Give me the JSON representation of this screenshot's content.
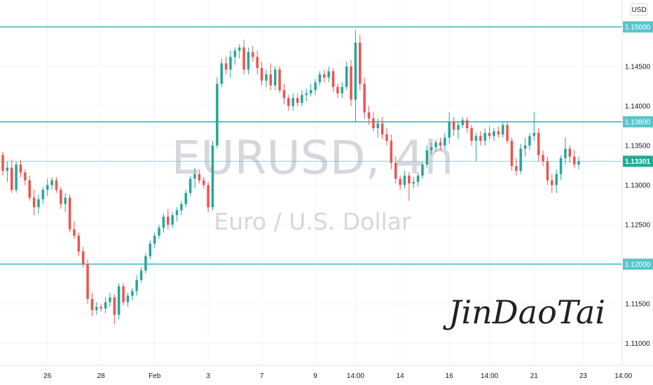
{
  "colors": {
    "bull": "#26a69a",
    "bear": "#ef5350",
    "level_line": "#5bc4cc",
    "level_label_bg": "#5bc4cc",
    "price_label_bg": "#22ab94",
    "grid": "#f0f3fa",
    "axis_border": "#e0e3eb",
    "watermark": "#d5d7dc"
  },
  "chart_data": {
    "type": "candlestick",
    "symbol_watermark": "EURUSD, 4h",
    "description_watermark": "Euro / U.S. Dollar",
    "currency_button": "USD",
    "signature": "JinDaoTai",
    "y_range": [
      1.1072,
      1.1534
    ],
    "x_range": [
      0,
      137
    ],
    "y_ticks": [
      1.115,
      1.12,
      1.125,
      1.13,
      1.135,
      1.14,
      1.145,
      1.15,
      1.11
    ],
    "y_tick_labels": [
      "1.11500",
      "1.12000",
      "1.12500",
      "1.13000",
      "1.13500",
      "1.14000",
      "1.14500",
      "1.15000",
      "1.11000"
    ],
    "x_tick_labels": [
      {
        "label": "26",
        "bar": 10
      },
      {
        "label": "28",
        "bar": 22
      },
      {
        "label": "Feb",
        "bar": 34
      },
      {
        "label": "3",
        "bar": 46
      },
      {
        "label": "7",
        "bar": 58
      },
      {
        "label": "9",
        "bar": 70
      },
      {
        "label": "14:00",
        "bar": 79
      },
      {
        "label": "14",
        "bar": 89
      },
      {
        "label": "16",
        "bar": 100
      },
      {
        "label": "14:00",
        "bar": 109
      },
      {
        "label": "21",
        "bar": 119
      },
      {
        "label": "23",
        "bar": 130
      },
      {
        "label": "14:00",
        "bar": 139
      }
    ],
    "horizontal_levels": [
      {
        "price": 1.15,
        "label": "1.15000"
      },
      {
        "price": 1.138,
        "label": "1.13800"
      },
      {
        "price": 1.12,
        "label": "1.12000"
      }
    ],
    "current_price": {
      "price": 1.13301,
      "label": "1.13301"
    },
    "candles": [
      [
        1.1338,
        1.1342,
        1.1312,
        1.1318
      ],
      [
        1.1318,
        1.133,
        1.1304,
        1.1322
      ],
      [
        1.1322,
        1.1332,
        1.129,
        1.1294
      ],
      [
        1.1294,
        1.133,
        1.129,
        1.1326
      ],
      [
        1.1326,
        1.1332,
        1.131,
        1.1316
      ],
      [
        1.1316,
        1.132,
        1.13,
        1.1306
      ],
      [
        1.1306,
        1.1312,
        1.128,
        1.1284
      ],
      [
        1.1284,
        1.1294,
        1.1262,
        1.1272
      ],
      [
        1.1272,
        1.1288,
        1.1264,
        1.1282
      ],
      [
        1.1282,
        1.1298,
        1.1276,
        1.1294
      ],
      [
        1.1294,
        1.1308,
        1.1286,
        1.13
      ],
      [
        1.13,
        1.131,
        1.1294,
        1.1306
      ],
      [
        1.1306,
        1.131,
        1.129,
        1.1294
      ],
      [
        1.1294,
        1.1298,
        1.127,
        1.1276
      ],
      [
        1.1276,
        1.129,
        1.1266,
        1.1284
      ],
      [
        1.1284,
        1.1288,
        1.124,
        1.1244
      ],
      [
        1.1244,
        1.1254,
        1.1232,
        1.1236
      ],
      [
        1.1236,
        1.124,
        1.121,
        1.1216
      ],
      [
        1.1216,
        1.1222,
        1.1196,
        1.12
      ],
      [
        1.12,
        1.1206,
        1.115,
        1.1156
      ],
      [
        1.1156,
        1.1164,
        1.1134,
        1.1142
      ],
      [
        1.1142,
        1.1152,
        1.1136,
        1.1146
      ],
      [
        1.1146,
        1.115,
        1.114,
        1.1144
      ],
      [
        1.1144,
        1.1158,
        1.1138,
        1.1152
      ],
      [
        1.1152,
        1.1164,
        1.1146,
        1.1158
      ],
      [
        1.1158,
        1.1162,
        1.1124,
        1.1136
      ],
      [
        1.1136,
        1.1176,
        1.113,
        1.1172
      ],
      [
        1.1172,
        1.1176,
        1.1148,
        1.1152
      ],
      [
        1.1152,
        1.1164,
        1.1146,
        1.116
      ],
      [
        1.116,
        1.117,
        1.1154,
        1.1166
      ],
      [
        1.1166,
        1.1186,
        1.116,
        1.118
      ],
      [
        1.118,
        1.1196,
        1.1176,
        1.1192
      ],
      [
        1.1192,
        1.1214,
        1.1188,
        1.121
      ],
      [
        1.121,
        1.123,
        1.1206,
        1.1226
      ],
      [
        1.1226,
        1.124,
        1.122,
        1.1236
      ],
      [
        1.1236,
        1.125,
        1.1232,
        1.1246
      ],
      [
        1.1246,
        1.1264,
        1.124,
        1.126
      ],
      [
        1.126,
        1.127,
        1.1244,
        1.125
      ],
      [
        1.125,
        1.1266,
        1.1246,
        1.1262
      ],
      [
        1.1262,
        1.1272,
        1.1254,
        1.1268
      ],
      [
        1.1268,
        1.128,
        1.1262,
        1.1276
      ],
      [
        1.1276,
        1.1294,
        1.1272,
        1.129
      ],
      [
        1.129,
        1.1312,
        1.1286,
        1.1308
      ],
      [
        1.1308,
        1.1322,
        1.1296,
        1.1314
      ],
      [
        1.1314,
        1.132,
        1.1302,
        1.1306
      ],
      [
        1.1306,
        1.131,
        1.1296,
        1.13
      ],
      [
        1.13,
        1.1304,
        1.1266,
        1.1272
      ],
      [
        1.1272,
        1.1356,
        1.1268,
        1.135
      ],
      [
        1.135,
        1.1436,
        1.1346,
        1.1428
      ],
      [
        1.1428,
        1.146,
        1.1424,
        1.1454
      ],
      [
        1.1454,
        1.1462,
        1.144,
        1.1446
      ],
      [
        1.1446,
        1.147,
        1.1436,
        1.1462
      ],
      [
        1.1462,
        1.1474,
        1.1452,
        1.147
      ],
      [
        1.147,
        1.1478,
        1.146,
        1.1474
      ],
      [
        1.1474,
        1.1484,
        1.144,
        1.1446
      ],
      [
        1.1446,
        1.1474,
        1.144,
        1.1468
      ],
      [
        1.1468,
        1.1476,
        1.1456,
        1.1462
      ],
      [
        1.1462,
        1.147,
        1.144,
        1.1448
      ],
      [
        1.1448,
        1.1456,
        1.1426,
        1.1432
      ],
      [
        1.1432,
        1.1446,
        1.1424,
        1.144
      ],
      [
        1.144,
        1.1454,
        1.142,
        1.1426
      ],
      [
        1.1426,
        1.145,
        1.142,
        1.1446
      ],
      [
        1.1446,
        1.145,
        1.1416,
        1.142
      ],
      [
        1.142,
        1.1428,
        1.1402,
        1.141
      ],
      [
        1.141,
        1.1414,
        1.1394,
        1.14
      ],
      [
        1.14,
        1.1416,
        1.1394,
        1.141
      ],
      [
        1.141,
        1.1416,
        1.14,
        1.1404
      ],
      [
        1.1404,
        1.142,
        1.14,
        1.1414
      ],
      [
        1.1414,
        1.1422,
        1.1406,
        1.1416
      ],
      [
        1.1416,
        1.1428,
        1.1412,
        1.142
      ],
      [
        1.142,
        1.1434,
        1.1414,
        1.143
      ],
      [
        1.143,
        1.1444,
        1.1426,
        1.144
      ],
      [
        1.144,
        1.1446,
        1.143,
        1.1436
      ],
      [
        1.1436,
        1.145,
        1.143,
        1.1444
      ],
      [
        1.1444,
        1.1448,
        1.1418,
        1.1424
      ],
      [
        1.1424,
        1.1428,
        1.141,
        1.1416
      ],
      [
        1.1416,
        1.143,
        1.141,
        1.1424
      ],
      [
        1.1424,
        1.1456,
        1.142,
        1.145
      ],
      [
        1.145,
        1.1458,
        1.14,
        1.1408
      ],
      [
        1.1408,
        1.1496,
        1.138,
        1.148
      ],
      [
        1.148,
        1.149,
        1.142,
        1.1428
      ],
      [
        1.1428,
        1.1436,
        1.1384,
        1.1392
      ],
      [
        1.1392,
        1.14,
        1.1376,
        1.1384
      ],
      [
        1.1384,
        1.1392,
        1.1368,
        1.1372
      ],
      [
        1.1372,
        1.1384,
        1.136,
        1.1378
      ],
      [
        1.1378,
        1.1386,
        1.1358,
        1.1364
      ],
      [
        1.1364,
        1.1372,
        1.135,
        1.1356
      ],
      [
        1.1356,
        1.1364,
        1.132,
        1.1328
      ],
      [
        1.1328,
        1.1336,
        1.1302,
        1.1308
      ],
      [
        1.1308,
        1.1312,
        1.1294,
        1.13
      ],
      [
        1.13,
        1.1318,
        1.1296,
        1.1312
      ],
      [
        1.1312,
        1.1316,
        1.128,
        1.1302
      ],
      [
        1.1302,
        1.131,
        1.1296,
        1.1304
      ],
      [
        1.1304,
        1.1316,
        1.1298,
        1.1312
      ],
      [
        1.1312,
        1.133,
        1.1308,
        1.1326
      ],
      [
        1.1326,
        1.135,
        1.1322,
        1.1344
      ],
      [
        1.1344,
        1.1354,
        1.1338,
        1.1348
      ],
      [
        1.1348,
        1.1358,
        1.1342,
        1.1354
      ],
      [
        1.1354,
        1.136,
        1.1344,
        1.135
      ],
      [
        1.135,
        1.1366,
        1.1346,
        1.136
      ],
      [
        1.136,
        1.1392,
        1.1352,
        1.138
      ],
      [
        1.138,
        1.1386,
        1.1362,
        1.137
      ],
      [
        1.137,
        1.138,
        1.1358,
        1.1376
      ],
      [
        1.1376,
        1.1386,
        1.1372,
        1.1382
      ],
      [
        1.1382,
        1.1386,
        1.1366,
        1.1372
      ],
      [
        1.1372,
        1.1376,
        1.135,
        1.1356
      ],
      [
        1.1356,
        1.1366,
        1.133,
        1.1362
      ],
      [
        1.1362,
        1.1368,
        1.135,
        1.1356
      ],
      [
        1.1356,
        1.1372,
        1.135,
        1.1366
      ],
      [
        1.1366,
        1.1374,
        1.1358,
        1.1362
      ],
      [
        1.1362,
        1.1372,
        1.1356,
        1.1368
      ],
      [
        1.1368,
        1.1374,
        1.136,
        1.1364
      ],
      [
        1.1364,
        1.138,
        1.136,
        1.1376
      ],
      [
        1.1376,
        1.138,
        1.1352,
        1.1356
      ],
      [
        1.1356,
        1.136,
        1.1318,
        1.1324
      ],
      [
        1.1324,
        1.1334,
        1.1312,
        1.1318
      ],
      [
        1.1318,
        1.1352,
        1.1314,
        1.1346
      ],
      [
        1.1346,
        1.136,
        1.1336,
        1.135
      ],
      [
        1.135,
        1.1366,
        1.1344,
        1.1362
      ],
      [
        1.1362,
        1.1392,
        1.1356,
        1.1366
      ],
      [
        1.1366,
        1.1372,
        1.133,
        1.1338
      ],
      [
        1.1338,
        1.1344,
        1.1324,
        1.133
      ],
      [
        1.133,
        1.1336,
        1.13,
        1.1306
      ],
      [
        1.1306,
        1.1314,
        1.129,
        1.13
      ],
      [
        1.13,
        1.132,
        1.129,
        1.1314
      ],
      [
        1.1314,
        1.1338,
        1.1306,
        1.1334
      ],
      [
        1.1334,
        1.136,
        1.1326,
        1.1346
      ],
      [
        1.1346,
        1.135,
        1.1328,
        1.1336
      ],
      [
        1.1336,
        1.1344,
        1.1322,
        1.1326
      ],
      [
        1.1326,
        1.1336,
        1.132,
        1.133
      ]
    ]
  }
}
